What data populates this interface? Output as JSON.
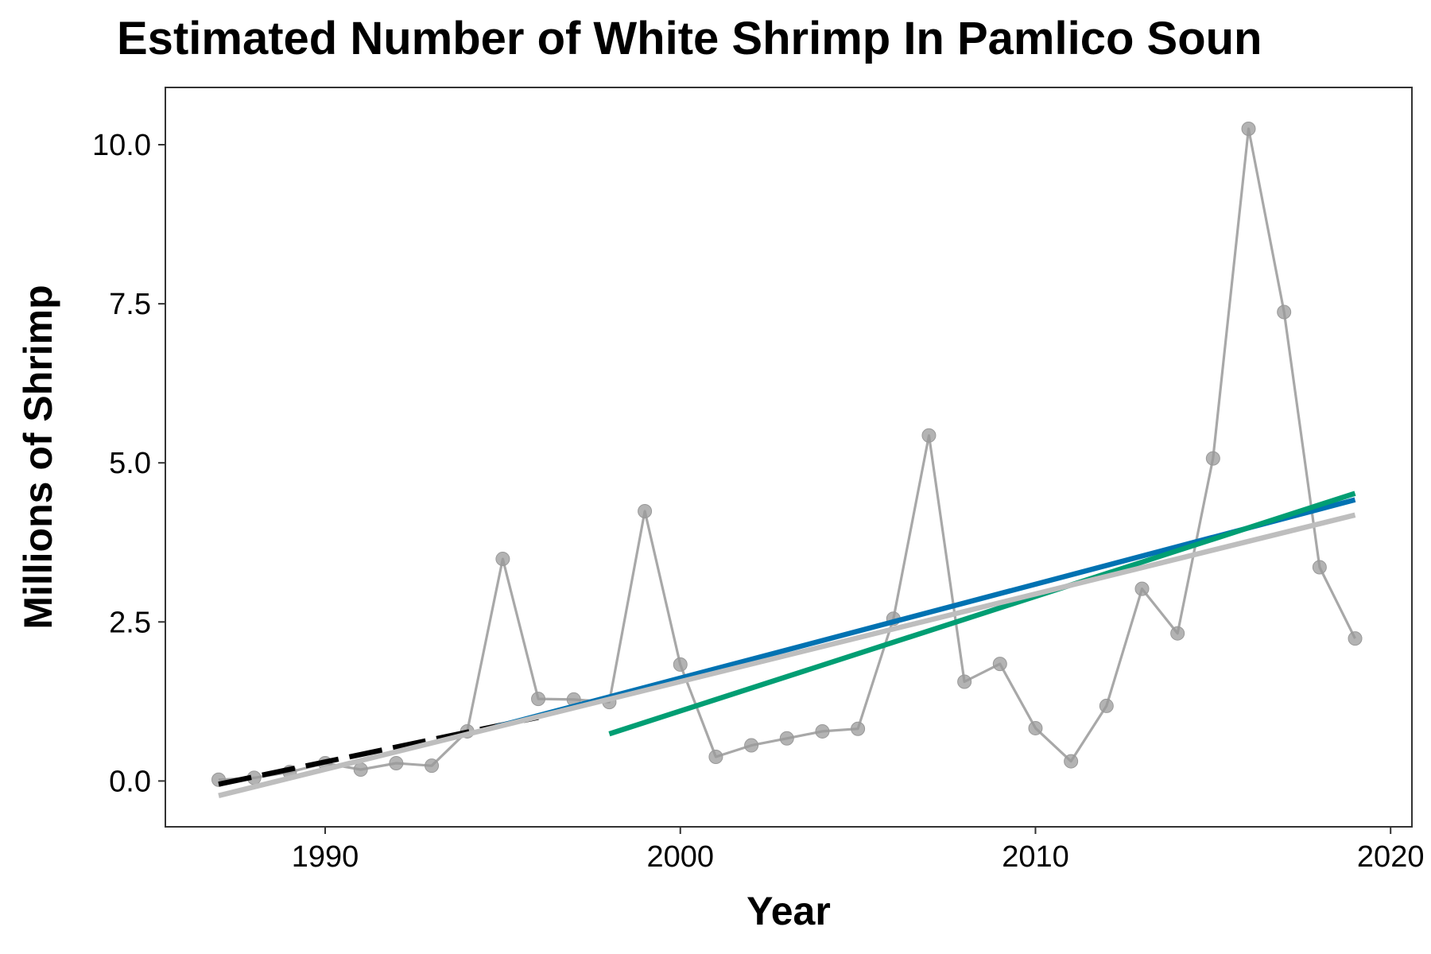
{
  "chart_data": {
    "type": "line",
    "title": "Estimated Number of White Shrimp In Pamlico Soun",
    "xlabel": "Year",
    "ylabel": "Millions of Shrimp",
    "xlim": [
      1985.5,
      2020.6
    ],
    "ylim": [
      -0.72,
      10.9
    ],
    "x_ticks": [
      1990,
      2000,
      2010,
      2020
    ],
    "x_tick_labels": [
      "1990",
      "2000",
      "2010",
      "2020"
    ],
    "y_ticks": [
      0.0,
      2.5,
      5.0,
      7.5,
      10.0
    ],
    "y_tick_labels": [
      "0.0",
      "2.5",
      "5.0",
      "7.5",
      "10.0"
    ],
    "grid": false,
    "legend": "none",
    "series": [
      {
        "style": "points-line",
        "color": "#a8a8a8",
        "x": [
          1987,
          1988,
          1989,
          1990,
          1991,
          1992,
          1993,
          1994,
          1995,
          1996,
          1997,
          1998,
          1999,
          2000,
          2001,
          2002,
          2003,
          2004,
          2005,
          2006,
          2007,
          2008,
          2009,
          2010,
          2011,
          2012,
          2013,
          2014,
          2015,
          2016,
          2017,
          2018,
          2019
        ],
        "values": [
          0.02,
          0.05,
          0.14,
          0.28,
          0.18,
          0.28,
          0.24,
          0.78,
          3.49,
          1.29,
          1.28,
          1.24,
          4.24,
          1.83,
          0.38,
          0.56,
          0.67,
          0.78,
          0.82,
          2.55,
          5.43,
          1.56,
          1.84,
          0.83,
          0.31,
          1.18,
          3.02,
          2.32,
          5.07,
          10.25,
          7.37,
          3.36,
          2.24
        ]
      },
      {
        "style": "dashed",
        "color": "#000000",
        "x": [
          1987,
          1996
        ],
        "values": [
          -0.05,
          1.0
        ]
      },
      {
        "style": "solid",
        "color": "#0072b2",
        "x": [
          1994.8,
          2019
        ],
        "values": [
          0.85,
          4.42
        ]
      },
      {
        "style": "solid",
        "color": "#009e73",
        "x": [
          1998,
          2019
        ],
        "values": [
          0.74,
          4.52
        ]
      },
      {
        "style": "solid",
        "color": "#bebebe",
        "x": [
          1987,
          2019
        ],
        "values": [
          -0.23,
          4.18
        ]
      }
    ]
  }
}
